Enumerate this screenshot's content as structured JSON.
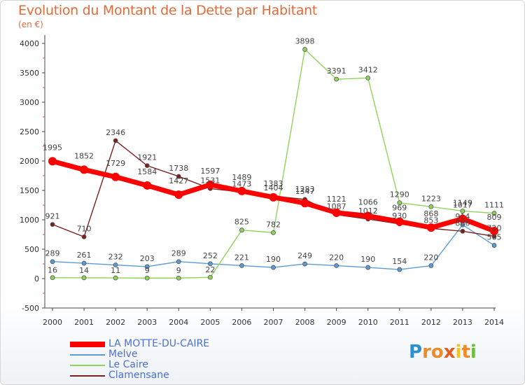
{
  "title": "Evolution du Montant de la Dette par Habitant",
  "subtitle": "(en €)",
  "logo": {
    "text": "Proxiti",
    "letters": [
      "P",
      "r",
      "o",
      "x",
      "i",
      "t",
      "i"
    ],
    "colors": [
      "#2e8fd0",
      "#f08a24",
      "#f08a24",
      "#e85a1c",
      "#f6c21b",
      "#f08a24",
      "#6bbf3a"
    ]
  },
  "chart_data": {
    "type": "line",
    "x": [
      2000,
      2001,
      2002,
      2003,
      2004,
      2005,
      2006,
      2007,
      2008,
      2009,
      2010,
      2011,
      2012,
      2013,
      2014
    ],
    "ylim": [
      -500,
      4000
    ],
    "yticks": [
      -500,
      0,
      500,
      1000,
      1500,
      2000,
      2500,
      3000,
      3500,
      4000
    ],
    "grid": false,
    "legend_position": "bottom-left",
    "series": [
      {
        "name": "LA MOTTE-DU-CAIRE",
        "color": "#ff0000",
        "values": [
          1995,
          1852,
          1729,
          1584,
          1427,
          1597,
          1489,
          1383,
          1283,
          1121,
          1066,
          969,
          868,
          1017,
          809
        ],
        "labels_shown": [
          true,
          true,
          true,
          true,
          true,
          true,
          true,
          true,
          true,
          true,
          true,
          true,
          true,
          true,
          true
        ]
      },
      {
        "name": "Melve",
        "color": "#5b9bd5",
        "values": [
          289,
          261,
          232,
          203,
          289,
          252,
          221,
          190,
          249,
          220,
          190,
          154,
          220,
          914,
          565
        ],
        "labels_shown": [
          true,
          true,
          true,
          true,
          true,
          true,
          true,
          true,
          true,
          true,
          true,
          true,
          true,
          true,
          true
        ]
      },
      {
        "name": "Le Caire",
        "color": "#8fd45a",
        "values": [
          16,
          14,
          11,
          9,
          9,
          22,
          825,
          782,
          3898,
          3391,
          3412,
          1290,
          1223,
          1149,
          1111
        ],
        "labels_shown": [
          true,
          true,
          true,
          true,
          true,
          true,
          true,
          true,
          true,
          true,
          true,
          true,
          true,
          true,
          true
        ]
      },
      {
        "name": "Clamensane",
        "color": "#7a1f1f",
        "values": [
          921,
          710,
          2346,
          1921,
          1738,
          1531,
          1473,
          1404,
          1347,
          1087,
          1012,
          930,
          853,
          806,
          720
        ],
        "labels_shown": [
          true,
          true,
          true,
          true,
          true,
          true,
          true,
          true,
          true,
          true,
          true,
          true,
          true,
          true,
          true
        ]
      }
    ]
  }
}
